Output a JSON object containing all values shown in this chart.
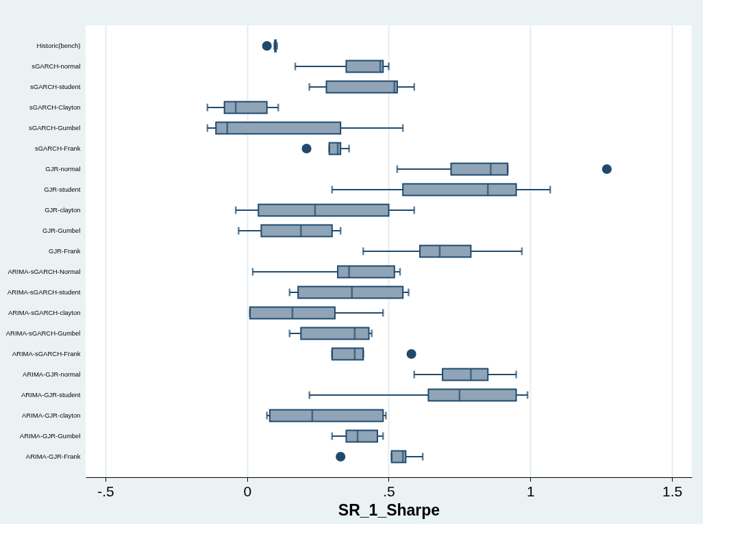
{
  "chart_data": {
    "type": "box",
    "xlabel": "SR_1_Sharpe",
    "categories": [
      "Historic(bench)",
      "sGARCH-normal",
      "sGARCH-student",
      "sGARCH-Clayton",
      "sGARCH-Gumbel",
      "sGARCH-Frank",
      "GJR-normal",
      "GJR-student",
      "GJR-clayton",
      "GJR-Gumbel",
      "GJR-Frank",
      "ARIMA-sGARCH-Normal",
      "ARIMA-sGARCH-student",
      "ARIMA-sGARCH-clayton",
      "ARIMA-sGARCH-Gumbel",
      "ARIMA-sGARCH-Frank",
      "ARIMA-GJR-normal",
      "ARIMA-GJR-student",
      "ARIMA-GJR-clayton",
      "ARIMA-GJR-Gumbel",
      "ARIMA-GJR-Frank"
    ],
    "orientation": "horizontal",
    "series": [
      {
        "color": "#1f4a6e",
        "boxes": [
          {
            "low": 0.096,
            "q1": 0.098,
            "median": 0.1,
            "q3": 0.102,
            "high": 0.106,
            "outliers": [
              0.07
            ]
          },
          {
            "low": 0.17,
            "q1": 0.35,
            "median": 0.47,
            "q3": 0.48,
            "high": 0.5
          },
          {
            "low": 0.22,
            "q1": 0.28,
            "median": 0.52,
            "q3": 0.53,
            "high": 0.59
          },
          {
            "low": -0.14,
            "q1": -0.08,
            "median": -0.04,
            "q3": 0.07,
            "high": 0.11
          },
          {
            "low": -0.14,
            "q1": -0.11,
            "median": -0.07,
            "q3": 0.33,
            "high": 0.55
          },
          {
            "low": 0.29,
            "q1": 0.29,
            "median": 0.32,
            "q3": 0.33,
            "high": 0.36,
            "outliers": [
              0.21
            ]
          },
          {
            "low": 0.53,
            "q1": 0.72,
            "median": 0.86,
            "q3": 0.92,
            "high": 0.92,
            "outliers": [
              1.27
            ]
          },
          {
            "low": 0.3,
            "q1": 0.55,
            "median": 0.85,
            "q3": 0.95,
            "high": 1.07
          },
          {
            "low": -0.04,
            "q1": 0.04,
            "median": 0.24,
            "q3": 0.5,
            "high": 0.59
          },
          {
            "low": -0.03,
            "q1": 0.05,
            "median": 0.19,
            "q3": 0.3,
            "high": 0.33
          },
          {
            "low": 0.41,
            "q1": 0.61,
            "median": 0.68,
            "q3": 0.79,
            "high": 0.97
          },
          {
            "low": 0.02,
            "q1": 0.32,
            "median": 0.36,
            "q3": 0.52,
            "high": 0.54
          },
          {
            "low": 0.15,
            "q1": 0.18,
            "median": 0.37,
            "q3": 0.55,
            "high": 0.57
          },
          {
            "low": 0.01,
            "q1": 0.01,
            "median": 0.16,
            "q3": 0.31,
            "high": 0.48
          },
          {
            "low": 0.15,
            "q1": 0.19,
            "median": 0.38,
            "q3": 0.43,
            "high": 0.44
          },
          {
            "low": 0.3,
            "q1": 0.3,
            "median": 0.38,
            "q3": 0.41,
            "high": 0.41,
            "outliers": [
              0.58
            ]
          },
          {
            "low": 0.59,
            "q1": 0.69,
            "median": 0.79,
            "q3": 0.85,
            "high": 0.95
          },
          {
            "low": 0.22,
            "q1": 0.64,
            "median": 0.75,
            "q3": 0.95,
            "high": 0.99
          },
          {
            "low": 0.07,
            "q1": 0.08,
            "median": 0.23,
            "q3": 0.48,
            "high": 0.49
          },
          {
            "low": 0.3,
            "q1": 0.35,
            "median": 0.39,
            "q3": 0.46,
            "high": 0.48
          },
          {
            "low": 0.51,
            "q1": 0.51,
            "median": 0.55,
            "q3": 0.56,
            "high": 0.62,
            "outliers": [
              0.33
            ]
          }
        ]
      }
    ],
    "xlim": [
      -0.57,
      1.57
    ],
    "xticks": [
      {
        "value": -0.5,
        "label": "-.5"
      },
      0,
      {
        "value": 0.5,
        "label": ".5"
      },
      1,
      1.5
    ],
    "grid": "x",
    "marker": "circle"
  }
}
